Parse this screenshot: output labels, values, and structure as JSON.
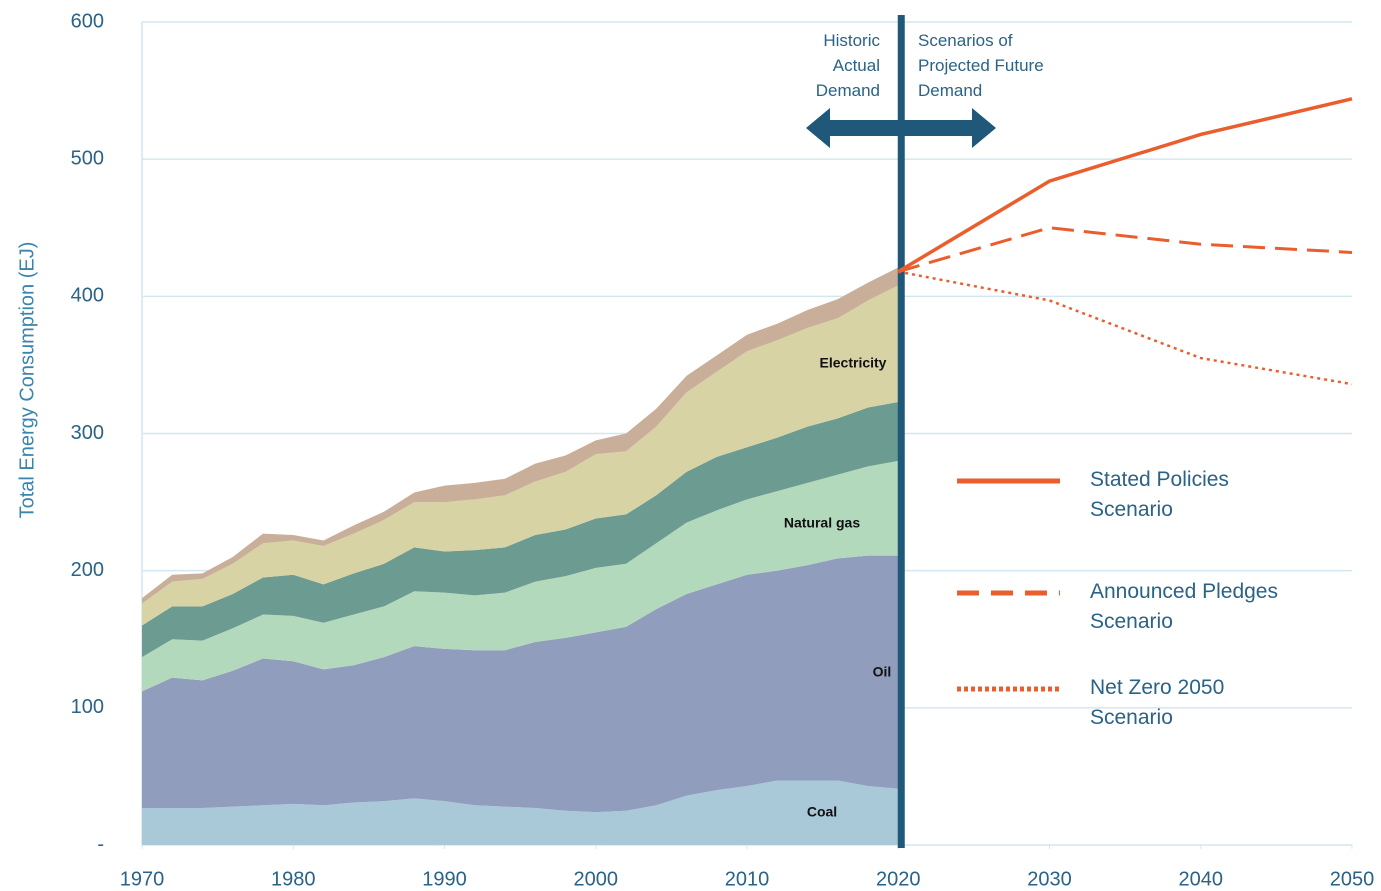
{
  "chart_data": {
    "type": "area",
    "stacked": true,
    "y_label": "Total Energy Consumption (EJ)",
    "annotations": [
      "Historic Actual Demand",
      "Scenarios of Projected Future Demand"
    ],
    "x": [
      1970,
      1972,
      1974,
      1976,
      1978,
      1980,
      1982,
      1984,
      1986,
      1988,
      1990,
      1992,
      1994,
      1996,
      1998,
      2000,
      2002,
      2004,
      2006,
      2008,
      2010,
      2012,
      2014,
      2016,
      2018,
      2020
    ],
    "series": [
      {
        "name": "Coal",
        "color": "#a9c9d9",
        "values": [
          27,
          27,
          27,
          28,
          29,
          30,
          29,
          31,
          32,
          34,
          32,
          29,
          28,
          27,
          25,
          24,
          25,
          29,
          36,
          40,
          43,
          47,
          47,
          47,
          43,
          41
        ]
      },
      {
        "name": "Oil",
        "color": "#909dbd",
        "values": [
          85,
          95,
          93,
          99,
          107,
          104,
          99,
          100,
          105,
          111,
          111,
          113,
          114,
          121,
          126,
          131,
          134,
          143,
          147,
          150,
          154,
          153,
          157,
          162,
          168,
          170
        ]
      },
      {
        "name": "Natural gas",
        "color": "#b3d9bd",
        "values": [
          25,
          28,
          29,
          31,
          32,
          33,
          34,
          37,
          37,
          40,
          41,
          40,
          42,
          44,
          45,
          47,
          46,
          48,
          52,
          54,
          55,
          58,
          60,
          61,
          65,
          69
        ]
      },
      {
        "color": "#6b9b91",
        "values": [
          23,
          24,
          25,
          25,
          27,
          30,
          28,
          30,
          31,
          32,
          30,
          33,
          33,
          34,
          34,
          36,
          36,
          35,
          37,
          39,
          38,
          39,
          41,
          41,
          43,
          43
        ]
      },
      {
        "name": "Electricity",
        "color": "#d7d3a5",
        "values": [
          16,
          18,
          20,
          22,
          25,
          25,
          28,
          29,
          32,
          33,
          36,
          37,
          38,
          39,
          42,
          47,
          46,
          50,
          58,
          62,
          70,
          71,
          72,
          73,
          78,
          85
        ]
      },
      {
        "color": "#c9af99",
        "values": [
          4,
          5,
          4,
          5,
          7,
          4,
          4,
          6,
          6,
          7,
          12,
          12,
          12,
          13,
          12,
          10,
          13,
          13,
          12,
          12,
          12,
          12,
          13,
          14,
          13,
          13
        ]
      }
    ],
    "scenario_x": [
      2020,
      2030,
      2040,
      2050
    ],
    "scenarios": [
      {
        "name": "Stated Policies Scenario",
        "color": "#ea5d2c",
        "style": "solid",
        "values": [
          418,
          484,
          518,
          544
        ]
      },
      {
        "name": "Announced Pledges Scenario",
        "color": "#ea5d2c",
        "style": "dashed",
        "values": [
          418,
          450,
          438,
          432
        ]
      },
      {
        "name": "Net Zero 2050 Scenario",
        "color": "#ea5d2c",
        "style": "dotted",
        "values": [
          418,
          397,
          355,
          336
        ]
      }
    ],
    "xlim": [
      1970,
      2050
    ],
    "xticks": [
      1970,
      1980,
      1990,
      2000,
      2010,
      2020,
      2030,
      2040,
      2050
    ],
    "ylim": [
      0,
      600
    ],
    "yticks": [
      {
        "value": 0,
        "label": "-"
      },
      100,
      200,
      300,
      400,
      500,
      600
    ],
    "grid": true
  }
}
